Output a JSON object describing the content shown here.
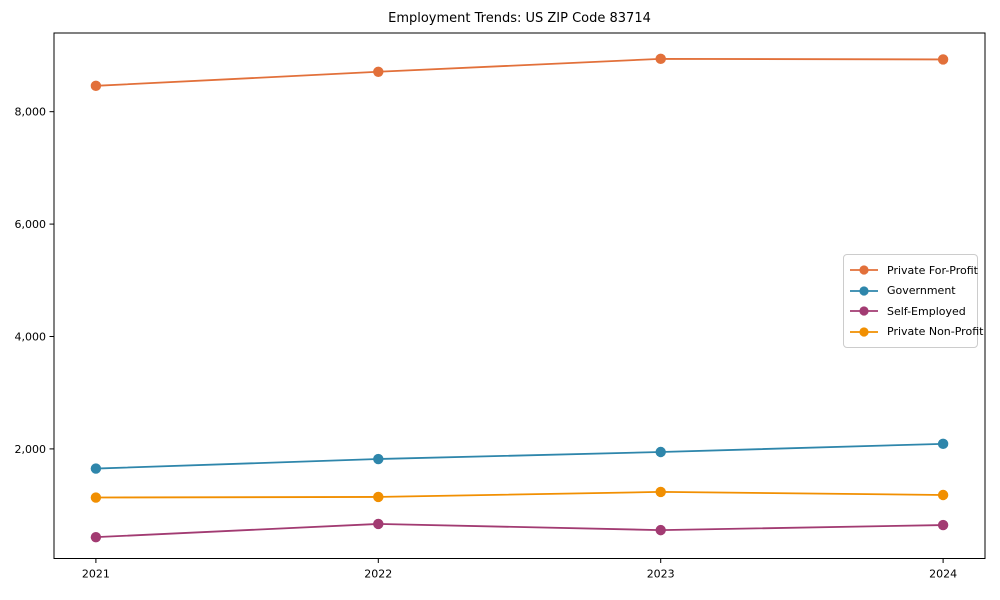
{
  "chart_data": {
    "type": "line",
    "title": "Employment Trends: US ZIP Code 83714",
    "x_categories": [
      "2021",
      "2022",
      "2023",
      "2024"
    ],
    "series": [
      {
        "name": "Private For-Profit",
        "color": "#E2703A",
        "values": [
          8460,
          8710,
          8940,
          8930
        ]
      },
      {
        "name": "Government",
        "color": "#2E86AB",
        "values": [
          1650,
          1820,
          1945,
          2090
        ]
      },
      {
        "name": "Self-Employed",
        "color": "#A23B72",
        "values": [
          430,
          665,
          555,
          645
        ]
      },
      {
        "name": "Private Non-Profit",
        "color": "#F18F01",
        "values": [
          1135,
          1145,
          1235,
          1180
        ]
      }
    ],
    "ylim": [
      50,
      9400
    ],
    "yticks": [
      2000,
      4000,
      6000,
      8000
    ],
    "ytick_labels": [
      "2,000",
      "4,000",
      "6,000",
      "8,000"
    ],
    "xlabel": "",
    "ylabel": "",
    "grid": false,
    "legend_position": "center-right",
    "axis_color": "#000000",
    "background_color": "#ffffff"
  }
}
